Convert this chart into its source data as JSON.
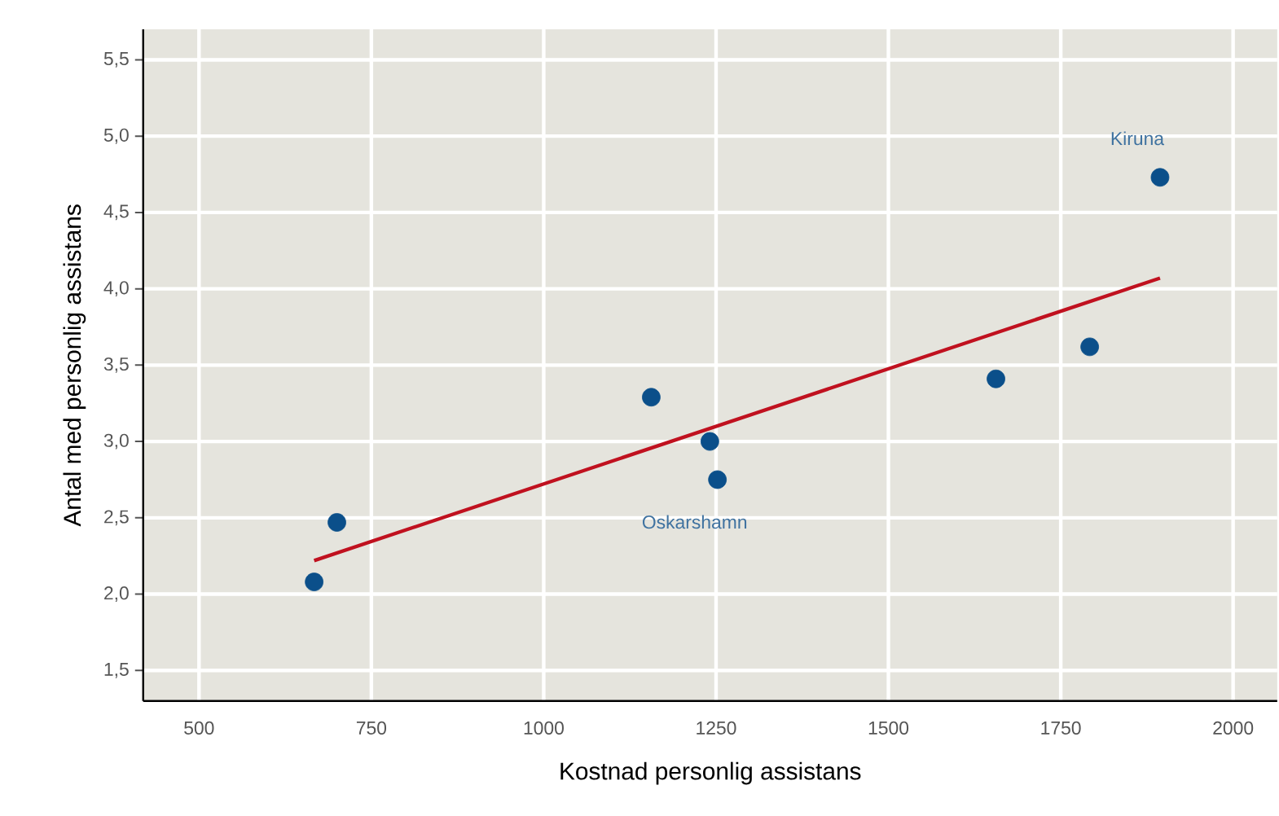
{
  "chart_data": {
    "type": "scatter",
    "xlabel": "Kostnad personlig assistans",
    "ylabel": "Antal med personlig assistans",
    "xlim": [
      419,
      2064
    ],
    "ylim": [
      1.3,
      5.7
    ],
    "xticks": [
      500,
      750,
      1000,
      1250,
      1500,
      1750,
      2000
    ],
    "yticks": [
      {
        "value": 1.5,
        "label": "1,5"
      },
      {
        "value": 2.0,
        "label": "2,0"
      },
      {
        "value": 2.5,
        "label": "2,5"
      },
      {
        "value": 3.0,
        "label": "3,0"
      },
      {
        "value": 3.5,
        "label": "3,5"
      },
      {
        "value": 4.0,
        "label": "4,0"
      },
      {
        "value": 4.5,
        "label": "4,5"
      },
      {
        "value": 5.0,
        "label": "5,0"
      },
      {
        "value": 5.5,
        "label": "5,5"
      }
    ],
    "grid": true,
    "series": [
      {
        "color": "#0b4f8a",
        "marker": "circle",
        "x": [
          667,
          700,
          1156,
          1241,
          1252,
          1656,
          1792,
          1894
        ],
        "values": [
          2.08,
          2.47,
          3.29,
          3.0,
          2.75,
          3.41,
          3.62,
          4.73
        ]
      },
      {
        "type": "line",
        "color": "#c0111f",
        "marker": "none",
        "line_style": "solid",
        "x": [
          667,
          1894
        ],
        "values": [
          2.22,
          4.07
        ]
      }
    ],
    "annotations": [
      {
        "text": "Kiruna",
        "x": 1894,
        "y": 4.73
      },
      {
        "text": "Oskarshamn",
        "x": 1252,
        "y": 2.75
      }
    ]
  }
}
